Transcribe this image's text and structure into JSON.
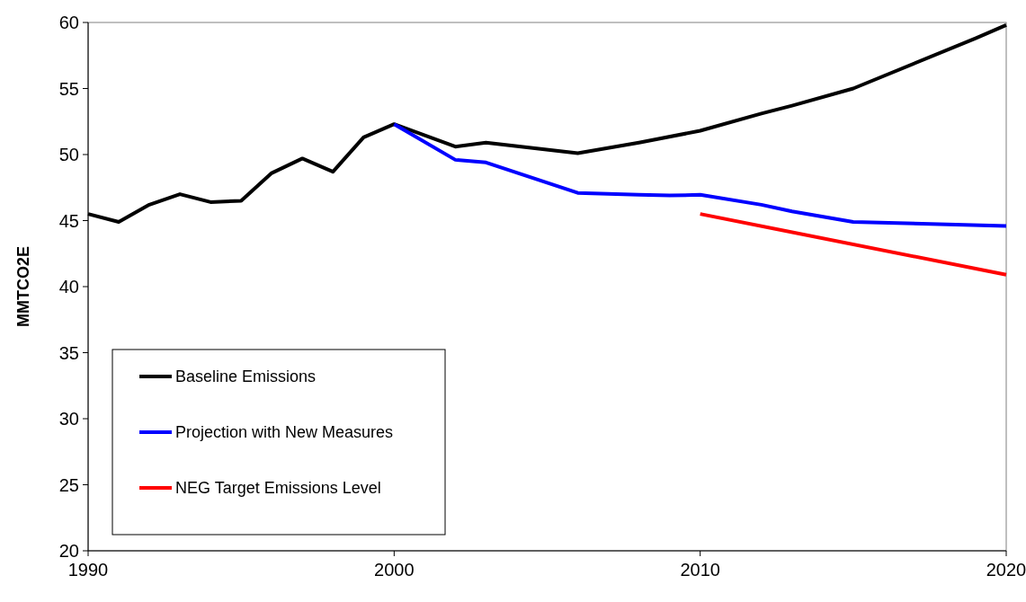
{
  "chart_data": {
    "type": "line",
    "ylabel": "MMTCO2E",
    "xlim": [
      1990,
      2020
    ],
    "xticks": [
      1990,
      2000,
      2010,
      2020
    ],
    "ylim": [
      20,
      60
    ],
    "yticks": [
      20,
      25,
      30,
      35,
      40,
      45,
      50,
      55,
      60
    ],
    "grid": false,
    "legend": "bottom left",
    "marker": "none",
    "line_style": "solid",
    "series": [
      {
        "name": "Baseline Emissions",
        "color": "#000000",
        "x": [
          1990,
          1991,
          1992,
          1993,
          1994,
          1995,
          1996,
          1997,
          1998,
          1999,
          2000,
          2002,
          2003,
          2006,
          2008,
          2010,
          2012,
          2013,
          2015,
          2019,
          2020
        ],
        "values": [
          45.5,
          44.9,
          46.2,
          47.0,
          46.4,
          46.5,
          48.6,
          49.7,
          48.7,
          51.3,
          52.3,
          50.6,
          50.9,
          50.1,
          50.9,
          51.8,
          53.1,
          53.7,
          55.0,
          58.8,
          59.8
        ]
      },
      {
        "name": "Projection with New Measures",
        "color": "#0000ff",
        "x": [
          2000,
          2002,
          2003,
          2006,
          2008,
          2009,
          2010,
          2012,
          2013,
          2015,
          2020
        ],
        "values": [
          52.3,
          49.6,
          49.4,
          47.1,
          46.95,
          46.9,
          46.95,
          46.2,
          45.7,
          44.9,
          44.6
        ]
      },
      {
        "name": "NEG Target Emissions Level",
        "color": "#ff0000",
        "x": [
          2010,
          2020
        ],
        "values": [
          45.5,
          40.9
        ]
      }
    ]
  }
}
